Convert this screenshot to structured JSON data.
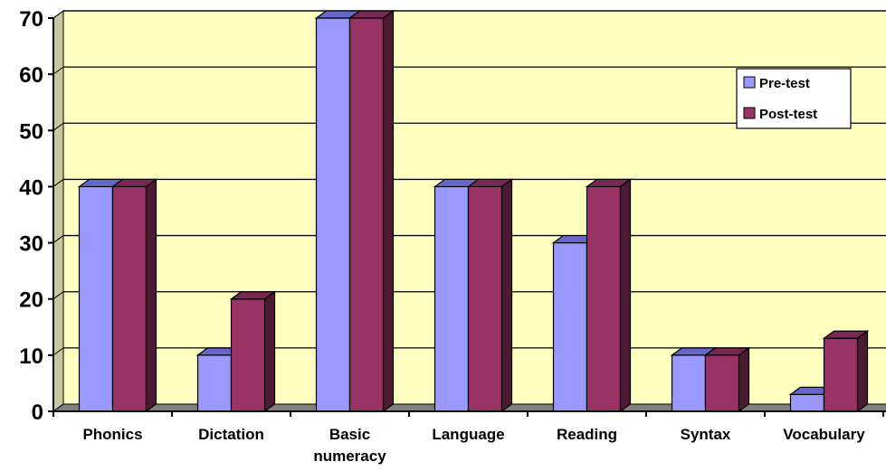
{
  "chart_data": {
    "type": "bar",
    "style": "3d-clustered-column",
    "categories": [
      "Phonics",
      "Dictation",
      "Basic numeracy",
      "Language",
      "Reading",
      "Syntax",
      "Vocabulary"
    ],
    "category_lines": [
      [
        "Phonics"
      ],
      [
        "Dictation"
      ],
      [
        "Basic",
        "numeracy"
      ],
      [
        "Language"
      ],
      [
        "Reading"
      ],
      [
        "Syntax"
      ],
      [
        "Vocabulary"
      ]
    ],
    "series": [
      {
        "name": "Pre-test",
        "values": [
          40,
          10,
          70,
          40,
          30,
          10,
          3
        ]
      },
      {
        "name": "Post-test",
        "values": [
          40,
          20,
          70,
          40,
          40,
          10,
          13
        ]
      }
    ],
    "ylim": [
      0,
      70
    ],
    "yticks": [
      0,
      10,
      20,
      30,
      40,
      50,
      60,
      70
    ],
    "grid": true,
    "legend_position": "top-right",
    "colors": {
      "plot_background": "#FFFFC0",
      "floor": "#808080",
      "series": [
        {
          "front": "#9999FF",
          "top": "#6666CC",
          "side": "#5E5EAA"
        },
        {
          "front": "#993366",
          "top": "#7A2852",
          "side": "#4D1A33"
        }
      ]
    }
  }
}
